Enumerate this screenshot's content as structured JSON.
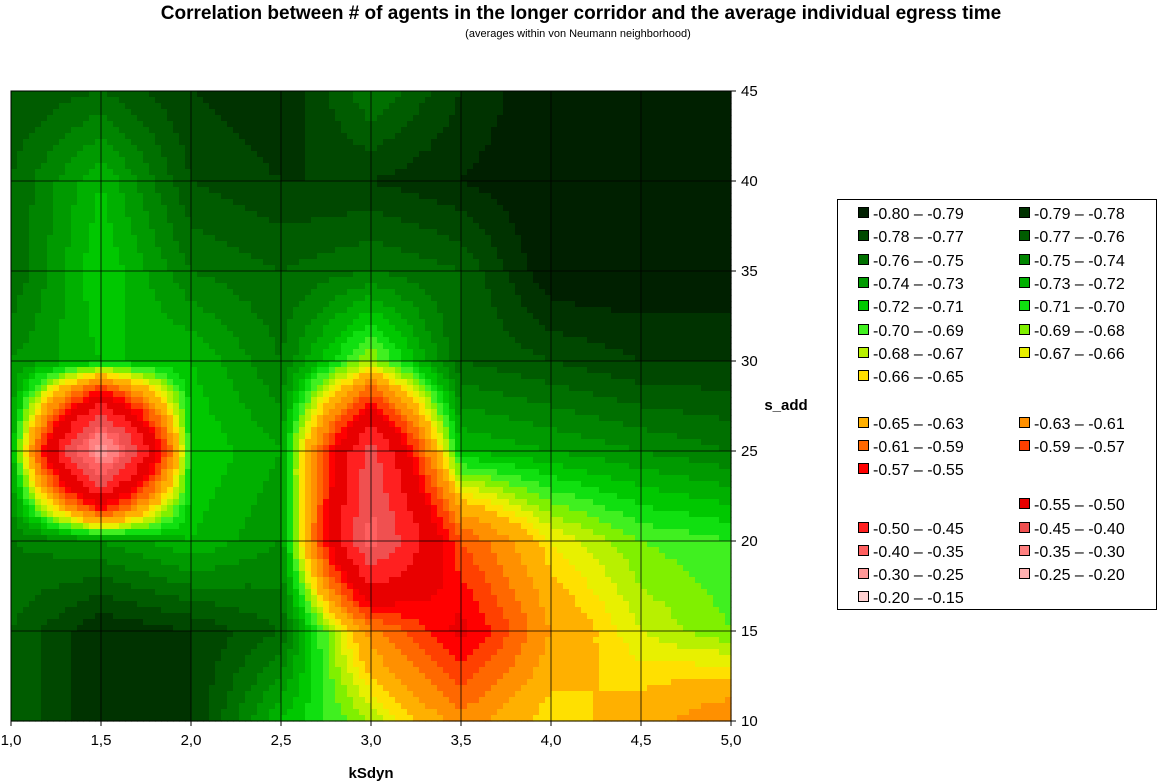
{
  "chart_data": {
    "type": "contour",
    "title": "Correlation between # of agents in the longer corridor and the average individual egress time",
    "subtitle": "(averages within von Neumann neighborhood)",
    "xlabel": "kSdyn",
    "ylabel": "s_add",
    "x_ticks": [
      "1,0",
      "1,5",
      "2,0",
      "2,5",
      "3,0",
      "3,5",
      "4,0",
      "4,5",
      "5,0"
    ],
    "y_ticks": [
      "10",
      "15",
      "20",
      "25",
      "30",
      "35",
      "40",
      "45"
    ],
    "x": [
      1.0,
      1.5,
      2.0,
      2.5,
      3.0,
      3.5,
      4.0,
      4.5,
      5.0
    ],
    "y": [
      10,
      15,
      20,
      25,
      30,
      35,
      40,
      45
    ],
    "xlim": [
      1.0,
      5.0
    ],
    "ylim": [
      10,
      45
    ],
    "grid": true,
    "legend_position": "right",
    "z": [
      [
        -0.76,
        -0.79,
        -0.78,
        -0.72,
        -0.68,
        -0.62,
        -0.66,
        -0.64,
        -0.61
      ],
      [
        -0.76,
        -0.79,
        -0.78,
        -0.76,
        -0.62,
        -0.54,
        -0.63,
        -0.67,
        -0.69
      ],
      [
        -0.75,
        -0.74,
        -0.72,
        -0.74,
        -0.38,
        -0.59,
        -0.66,
        -0.69,
        -0.7
      ],
      [
        -0.73,
        -0.26,
        -0.71,
        -0.73,
        -0.43,
        -0.72,
        -0.73,
        -0.74,
        -0.75
      ],
      [
        -0.74,
        -0.72,
        -0.72,
        -0.75,
        -0.68,
        -0.76,
        -0.77,
        -0.78,
        -0.78
      ],
      [
        -0.76,
        -0.71,
        -0.75,
        -0.76,
        -0.75,
        -0.76,
        -0.8,
        -0.8,
        -0.8
      ],
      [
        -0.76,
        -0.72,
        -0.77,
        -0.78,
        -0.78,
        -0.79,
        -0.8,
        -0.8,
        -0.8
      ],
      [
        -0.77,
        -0.76,
        -0.78,
        -0.79,
        -0.75,
        -0.78,
        -0.8,
        -0.8,
        -0.8
      ]
    ],
    "legend": [
      {
        "label": "-0.80 – -0.79",
        "color": "#002000",
        "lo": -0.8,
        "hi": -0.79
      },
      {
        "label": "-0.79 – -0.78",
        "color": "#003300",
        "lo": -0.79,
        "hi": -0.78
      },
      {
        "label": "-0.78 – -0.77",
        "color": "#004800",
        "lo": -0.78,
        "hi": -0.77
      },
      {
        "label": "-0.77 – -0.76",
        "color": "#005c00",
        "lo": -0.77,
        "hi": -0.76
      },
      {
        "label": "-0.76 – -0.75",
        "color": "#007000",
        "lo": -0.76,
        "hi": -0.75
      },
      {
        "label": "-0.75 – -0.74",
        "color": "#008500",
        "lo": -0.75,
        "hi": -0.74
      },
      {
        "label": "-0.74 – -0.73",
        "color": "#009a00",
        "lo": -0.74,
        "hi": -0.73
      },
      {
        "label": "-0.73 – -0.72",
        "color": "#00b000",
        "lo": -0.73,
        "hi": -0.72
      },
      {
        "label": "-0.72 – -0.71",
        "color": "#00c800",
        "lo": -0.72,
        "hi": -0.71
      },
      {
        "label": "-0.71 – -0.70",
        "color": "#10e010",
        "lo": -0.71,
        "hi": -0.7
      },
      {
        "label": "-0.70 – -0.69",
        "color": "#40f020",
        "lo": -0.7,
        "hi": -0.69
      },
      {
        "label": "-0.69 – -0.68",
        "color": "#80f000",
        "lo": -0.69,
        "hi": -0.68
      },
      {
        "label": "-0.68 – -0.67",
        "color": "#b8f000",
        "lo": -0.68,
        "hi": -0.67
      },
      {
        "label": "-0.67 – -0.66",
        "color": "#e8f000",
        "lo": -0.67,
        "hi": -0.66
      },
      {
        "label": "-0.66 – -0.65",
        "color": "#ffe000",
        "lo": -0.66,
        "hi": -0.65
      },
      {
        "label": "-0.65 – -0.63",
        "color": "#ffb000",
        "lo": -0.65,
        "hi": -0.63
      },
      {
        "label": "-0.63 – -0.61",
        "color": "#ff9000",
        "lo": -0.63,
        "hi": -0.61
      },
      {
        "label": "-0.61 – -0.59",
        "color": "#ff6800",
        "lo": -0.61,
        "hi": -0.59
      },
      {
        "label": "-0.59 – -0.57",
        "color": "#ff4000",
        "lo": -0.59,
        "hi": -0.57
      },
      {
        "label": "-0.57 – -0.55",
        "color": "#ff0000",
        "lo": -0.57,
        "hi": -0.55
      },
      {
        "label": "-0.55 – -0.50",
        "color": "#e80000",
        "lo": -0.55,
        "hi": -0.5
      },
      {
        "label": "-0.50 – -0.45",
        "color": "#ff2020",
        "lo": -0.5,
        "hi": -0.45
      },
      {
        "label": "-0.45 – -0.40",
        "color": "#f05050",
        "lo": -0.45,
        "hi": -0.4
      },
      {
        "label": "-0.40 – -0.35",
        "color": "#ff6060",
        "lo": -0.4,
        "hi": -0.35
      },
      {
        "label": "-0.35 – -0.30",
        "color": "#ff8080",
        "lo": -0.35,
        "hi": -0.3
      },
      {
        "label": "-0.30 – -0.25",
        "color": "#ff9898",
        "lo": -0.3,
        "hi": -0.25
      },
      {
        "label": "-0.25 – -0.20",
        "color": "#ffb0b0",
        "lo": -0.25,
        "hi": -0.2
      },
      {
        "label": "-0.20 – -0.15",
        "color": "#ffd0d0",
        "lo": -0.2,
        "hi": -0.15
      }
    ]
  }
}
